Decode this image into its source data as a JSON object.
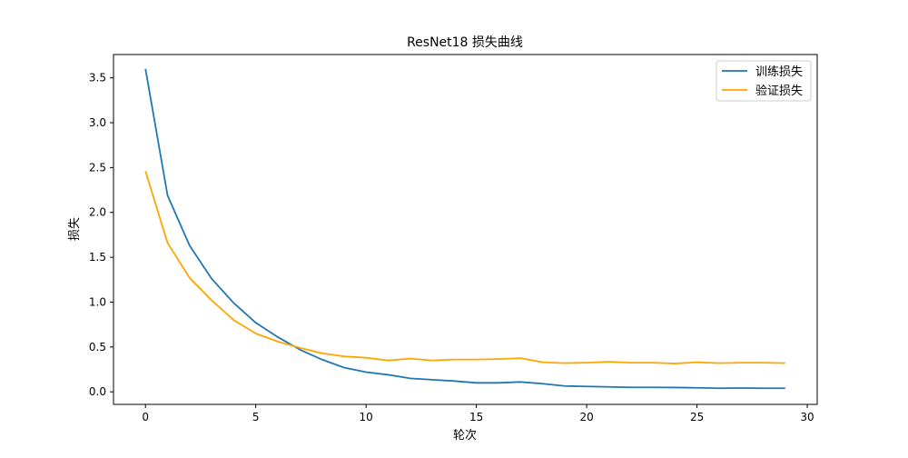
{
  "chart_data": {
    "type": "line",
    "title": "ResNet18 损失曲线",
    "xlabel": "轮次",
    "ylabel": "损失",
    "xlim": [
      -1.45,
      30.45
    ],
    "ylim": [
      -0.14,
      3.76
    ],
    "xticks": [
      0,
      5,
      10,
      15,
      20,
      25,
      30
    ],
    "xtick_labels": [
      "0",
      "5",
      "10",
      "15",
      "20",
      "25",
      "30"
    ],
    "yticks": [
      0.0,
      0.5,
      1.0,
      1.5,
      2.0,
      2.5,
      3.0,
      3.5
    ],
    "ytick_labels": [
      "0.0",
      "0.5",
      "1.0",
      "1.5",
      "2.0",
      "2.5",
      "3.0",
      "3.5"
    ],
    "grid": false,
    "legend_position": "top-right",
    "x": [
      0,
      1,
      2,
      3,
      4,
      5,
      6,
      7,
      8,
      9,
      10,
      11,
      12,
      13,
      14,
      15,
      16,
      17,
      18,
      19,
      20,
      21,
      22,
      23,
      24,
      25,
      26,
      27,
      28,
      29
    ],
    "series": [
      {
        "name": "训练损失",
        "color": "#1f77b4",
        "values": [
          3.6,
          2.19,
          1.63,
          1.26,
          0.99,
          0.77,
          0.61,
          0.47,
          0.36,
          0.27,
          0.22,
          0.19,
          0.15,
          0.135,
          0.12,
          0.1,
          0.1,
          0.11,
          0.09,
          0.065,
          0.06,
          0.055,
          0.05,
          0.05,
          0.048,
          0.045,
          0.04,
          0.042,
          0.04,
          0.04
        ]
      },
      {
        "name": "验证损失",
        "color": "#ffa500",
        "values": [
          2.46,
          1.66,
          1.27,
          1.02,
          0.8,
          0.65,
          0.56,
          0.49,
          0.43,
          0.395,
          0.38,
          0.35,
          0.37,
          0.35,
          0.36,
          0.36,
          0.365,
          0.375,
          0.33,
          0.32,
          0.325,
          0.335,
          0.325,
          0.325,
          0.315,
          0.33,
          0.32,
          0.325,
          0.325,
          0.32
        ]
      }
    ]
  }
}
